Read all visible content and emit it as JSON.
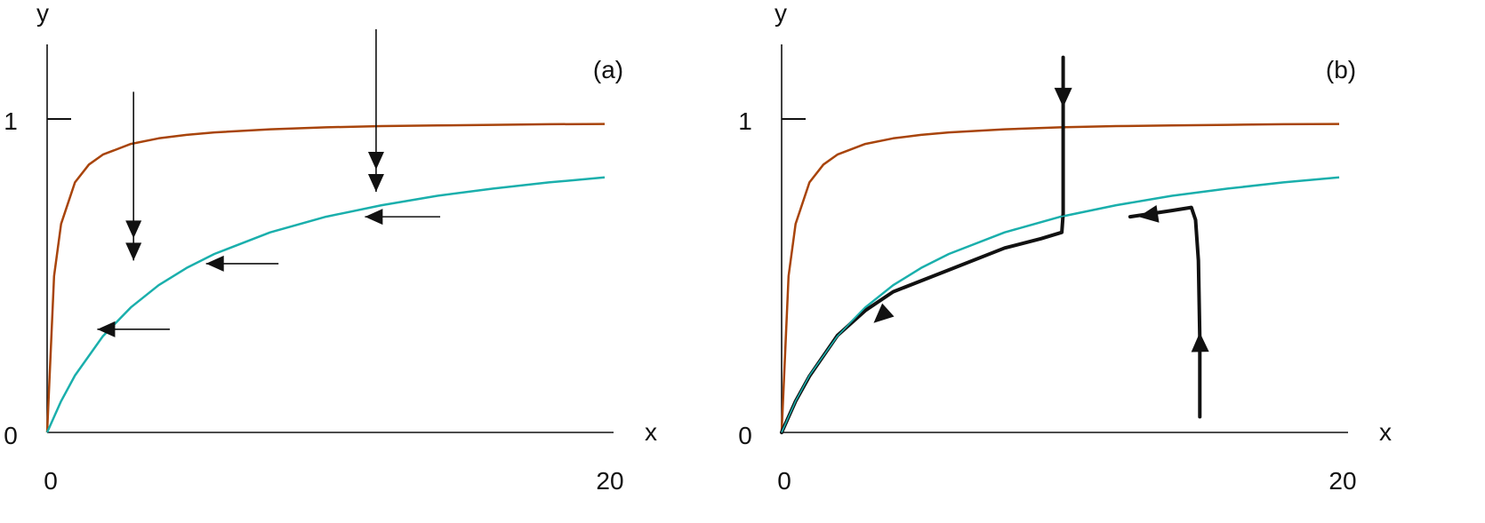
{
  "colors": {
    "axis": "#111111",
    "curve_upper": "#a8440b",
    "curve_lower": "#1aafac",
    "trajectory": "#111111"
  },
  "chart_data": [
    {
      "type": "line",
      "panel_label": "(a)",
      "xlabel": "x",
      "ylabel": "y",
      "x_ticks": [
        "0",
        "20"
      ],
      "y_ticks": [
        "0",
        "1"
      ],
      "xlim": [
        0,
        20
      ],
      "ylim": [
        0,
        1.25
      ],
      "series": [
        {
          "color_key": "curve_upper",
          "x": [
            0,
            0.25,
            0.5,
            1,
            1.5,
            2,
            3,
            4,
            5,
            6,
            8,
            10,
            12,
            14,
            16,
            18,
            20
          ],
          "y": [
            0,
            0.5,
            0.667,
            0.8,
            0.857,
            0.889,
            0.923,
            0.941,
            0.952,
            0.96,
            0.97,
            0.976,
            0.98,
            0.982,
            0.984,
            0.986,
            0.987
          ]
        },
        {
          "color_key": "curve_lower",
          "x": [
            0,
            0.5,
            1,
            2,
            3,
            4,
            5,
            6,
            8,
            10,
            12,
            14,
            16,
            18,
            20
          ],
          "y": [
            0,
            0.1,
            0.182,
            0.308,
            0.4,
            0.471,
            0.526,
            0.571,
            0.64,
            0.69,
            0.727,
            0.757,
            0.78,
            0.8,
            0.816
          ]
        }
      ],
      "arrows": [
        {
          "direction": "down",
          "x": 3.1,
          "y_from": 1.09,
          "y_to": 0.55
        },
        {
          "direction": "down",
          "x": 11.8,
          "y_from": 1.29,
          "y_to": 0.77
        },
        {
          "direction": "left",
          "y": 0.33,
          "x_from": 4.4,
          "x_to": 1.8
        },
        {
          "direction": "left",
          "y": 0.54,
          "x_from": 8.3,
          "x_to": 5.7
        },
        {
          "direction": "left",
          "y": 0.69,
          "x_from": 14.1,
          "x_to": 11.4
        }
      ]
    },
    {
      "type": "line",
      "panel_label": "(b)",
      "xlabel": "x",
      "ylabel": "y",
      "x_ticks": [
        "0",
        "20"
      ],
      "y_ticks": [
        "0",
        "1"
      ],
      "xlim": [
        0,
        20
      ],
      "ylim": [
        0,
        1.25
      ],
      "series": [
        {
          "color_key": "curve_upper",
          "x": [
            0,
            0.25,
            0.5,
            1,
            1.5,
            2,
            3,
            4,
            5,
            6,
            8,
            10,
            12,
            14,
            16,
            18,
            20
          ],
          "y": [
            0,
            0.5,
            0.667,
            0.8,
            0.857,
            0.889,
            0.923,
            0.941,
            0.952,
            0.96,
            0.97,
            0.976,
            0.98,
            0.982,
            0.984,
            0.986,
            0.987
          ]
        },
        {
          "color_key": "curve_lower",
          "x": [
            0,
            0.5,
            1,
            2,
            3,
            4,
            5,
            6,
            8,
            10,
            12,
            14,
            16,
            18,
            20
          ],
          "y": [
            0,
            0.1,
            0.182,
            0.308,
            0.4,
            0.471,
            0.526,
            0.571,
            0.64,
            0.69,
            0.727,
            0.757,
            0.78,
            0.8,
            0.816
          ]
        }
      ],
      "trajectories": [
        {
          "x": [
            10.1,
            10.1,
            10.1,
            10.1,
            10.05,
            9.3,
            8,
            6,
            4,
            3,
            2,
            1,
            0.5,
            0
          ],
          "y": [
            1.2,
            1.05,
            0.9,
            0.7,
            0.64,
            0.62,
            0.59,
            0.52,
            0.45,
            0.39,
            0.31,
            0.18,
            0.1,
            0
          ],
          "arrow_points": [
            [
              10.1,
              1.04
            ],
            [
              3.3,
              0.35
            ]
          ]
        },
        {
          "x": [
            15,
            15,
            14.95,
            14.85,
            14.7,
            14,
            12.5
          ],
          "y": [
            0.05,
            0.3,
            0.55,
            0.68,
            0.72,
            0.71,
            0.69
          ],
          "arrow_points": [
            [
              15,
              0.32
            ],
            [
              12.8,
              0.69
            ]
          ]
        }
      ]
    }
  ]
}
